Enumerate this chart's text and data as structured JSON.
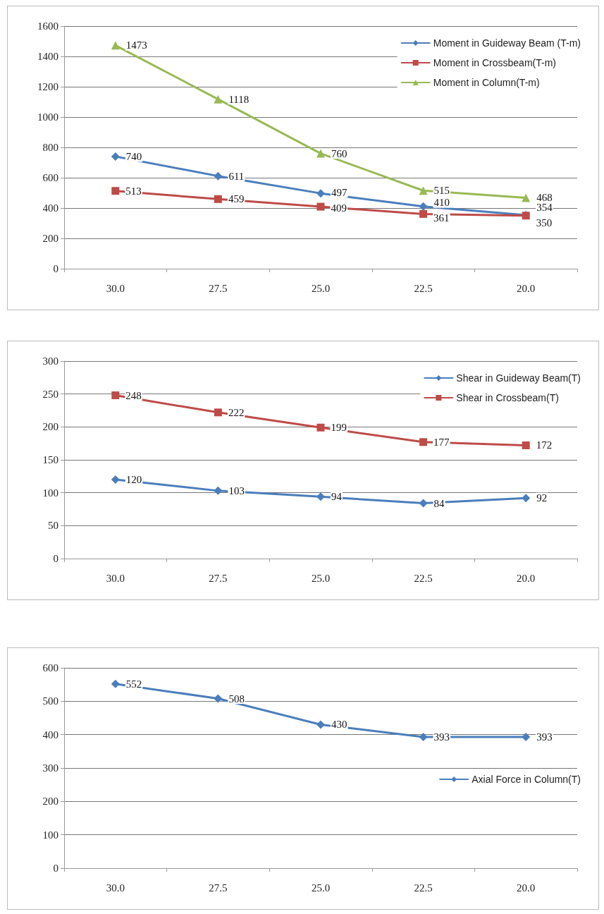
{
  "chart_data": [
    {
      "type": "line",
      "categories": [
        "30.0",
        "27.5",
        "25.0",
        "22.5",
        "20.0"
      ],
      "ylim": [
        0,
        1600
      ],
      "yticks": [
        0,
        200,
        400,
        600,
        800,
        1000,
        1200,
        1400,
        1600
      ],
      "grid": "y",
      "legend": "top right",
      "data_labels": true,
      "series": [
        {
          "name": "Moment in Guideway Beam (T-m)",
          "color": "#4a7ebb",
          "marker": "diamond",
          "values": [
            740,
            611,
            497,
            410,
            354
          ]
        },
        {
          "name": "Moment in Crossbeam(T-m)",
          "color": "#be4b48",
          "marker": "square",
          "values": [
            513,
            459,
            409,
            361,
            350
          ]
        },
        {
          "name": "Moment in Column(T-m)",
          "color": "#98b954",
          "marker": "triangle",
          "values": [
            1473,
            1118,
            760,
            515,
            468
          ]
        }
      ]
    },
    {
      "type": "line",
      "categories": [
        "30.0",
        "27.5",
        "25.0",
        "22.5",
        "20.0"
      ],
      "ylim": [
        0,
        300
      ],
      "yticks": [
        0,
        50,
        100,
        150,
        200,
        250,
        300
      ],
      "grid": "y",
      "legend": "top right",
      "data_labels": true,
      "series": [
        {
          "name": "Shear in Guideway Beam(T)",
          "color": "#4a7ebb",
          "marker": "diamond",
          "values": [
            120,
            103,
            94,
            84,
            92
          ]
        },
        {
          "name": "Shear in Crossbeam(T)",
          "color": "#be4b48",
          "marker": "square",
          "values": [
            248,
            222,
            199,
            177,
            172
          ]
        }
      ]
    },
    {
      "type": "line",
      "categories": [
        "30.0",
        "27.5",
        "25.0",
        "22.5",
        "20.0"
      ],
      "ylim": [
        0,
        600
      ],
      "yticks": [
        0,
        100,
        200,
        300,
        400,
        500,
        600
      ],
      "grid": "y",
      "legend": "right",
      "data_labels": true,
      "series": [
        {
          "name": "Axial Force in Column(T)",
          "color": "#4a7ebb",
          "marker": "diamond",
          "values": [
            552,
            508,
            430,
            393,
            393
          ]
        }
      ]
    }
  ]
}
